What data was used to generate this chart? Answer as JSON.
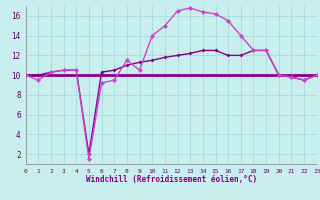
{
  "background_color": "#c8eeee",
  "grid_color": "#aadddd",
  "line_color_bright": "#cc44cc",
  "line_color_dark": "#880088",
  "line_color_flat": "#880088",
  "hours": [
    0,
    1,
    2,
    3,
    4,
    5,
    6,
    7,
    8,
    9,
    10,
    11,
    12,
    13,
    14,
    15,
    16,
    17,
    18,
    19,
    20,
    21,
    22,
    23
  ],
  "series1": [
    10,
    9.5,
    10.3,
    10.5,
    10.5,
    1.5,
    9.2,
    9.5,
    11.5,
    10.5,
    14.0,
    15.0,
    16.5,
    16.8,
    16.4,
    16.2,
    15.5,
    14.0,
    12.5,
    12.5,
    10.0,
    9.8,
    9.5,
    10.0
  ],
  "series2": [
    10,
    10,
    10,
    10,
    10,
    10,
    10,
    10,
    10,
    10,
    10,
    10,
    10,
    10,
    10,
    10,
    10,
    10,
    10,
    10,
    10,
    10,
    10,
    10
  ],
  "series3": [
    10,
    10,
    10.3,
    10.5,
    10.5,
    2.0,
    10.3,
    10.5,
    11.0,
    11.3,
    11.5,
    11.8,
    12.0,
    12.2,
    12.5,
    12.5,
    12.0,
    12.0,
    12.5,
    12.5,
    10.0,
    9.8,
    9.5,
    10.0
  ],
  "xlabel": "Windchill (Refroidissement éolien,°C)",
  "ylim": [
    1,
    17
  ],
  "xlim": [
    0,
    23
  ],
  "yticks": [
    2,
    4,
    6,
    8,
    10,
    12,
    14,
    16
  ],
  "xticks": [
    0,
    1,
    2,
    3,
    4,
    5,
    6,
    7,
    8,
    9,
    10,
    11,
    12,
    13,
    14,
    15,
    16,
    17,
    18,
    19,
    20,
    21,
    22,
    23
  ]
}
